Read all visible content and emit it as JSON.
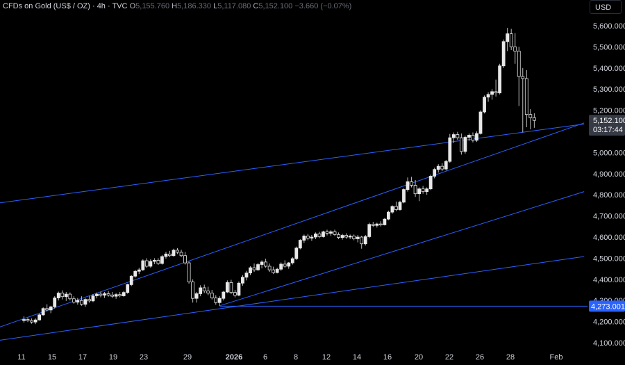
{
  "header": {
    "symbol": "CFDs on Gold (US$ / OZ) · 4h · TVC",
    "open_key": "O",
    "open": "5,155.760",
    "high_key": "H",
    "high": "5,186.330",
    "low_key": "L",
    "low": "5,117.080",
    "close_key": "C",
    "close": "5,152.100",
    "change": "−3.660 (−0.07%)"
  },
  "currency": "USD",
  "colors": {
    "background": "#000000",
    "candle": "#e8e8e8",
    "trendline": "#2962ff",
    "axis_text": "#d1d4dc"
  },
  "chart_data": {
    "type": "candlestick",
    "title": "CFDs on Gold (US$ / OZ) · 4h · TVC",
    "y_ticks": [
      "5,600.000",
      "5,500.000",
      "5,400.000",
      "5,300.000",
      "5,200.000",
      "5,000.000",
      "4,900.000",
      "4,800.000",
      "4,700.000",
      "4,600.000",
      "4,500.000",
      "4,400.000",
      "4,300.000",
      "4,200.000",
      "4,100.000"
    ],
    "y_tick_values": [
      5600,
      5500,
      5400,
      5300,
      5200,
      5000,
      4900,
      4800,
      4700,
      4600,
      4500,
      4400,
      4300,
      4200,
      4100
    ],
    "ylim": [
      4070,
      5655
    ],
    "x_ticks": [
      "11",
      "15",
      "17",
      "19",
      "23",
      "29",
      "2026",
      "6",
      "8",
      "12",
      "14",
      "16",
      "20",
      "22",
      "26",
      "28",
      "Feb"
    ],
    "price_label": "5,152.100",
    "price_value": 5152.1,
    "countdown": "03:17:44",
    "level_label": "4,273.001",
    "level_value": 4273.001,
    "series": [
      {
        "t": 0.5,
        "o": 4205,
        "h": 4225,
        "l": 4195,
        "c": 4210
      },
      {
        "t": 1.0,
        "o": 4210,
        "h": 4218,
        "l": 4198,
        "c": 4205
      },
      {
        "t": 1.5,
        "o": 4205,
        "h": 4215,
        "l": 4190,
        "c": 4198
      },
      {
        "t": 2.0,
        "o": 4198,
        "h": 4215,
        "l": 4188,
        "c": 4208
      },
      {
        "t": 2.5,
        "o": 4208,
        "h": 4238,
        "l": 4205,
        "c": 4232
      },
      {
        "t": 3.0,
        "o": 4232,
        "h": 4268,
        "l": 4228,
        "c": 4262
      },
      {
        "t": 3.5,
        "o": 4262,
        "h": 4282,
        "l": 4248,
        "c": 4255
      },
      {
        "t": 4.0,
        "o": 4255,
        "h": 4275,
        "l": 4240,
        "c": 4270
      },
      {
        "t": 4.5,
        "o": 4270,
        "h": 4320,
        "l": 4262,
        "c": 4312
      },
      {
        "t": 5.0,
        "o": 4312,
        "h": 4342,
        "l": 4300,
        "c": 4335
      },
      {
        "t": 5.5,
        "o": 4335,
        "h": 4348,
        "l": 4305,
        "c": 4318
      },
      {
        "t": 6.0,
        "o": 4318,
        "h": 4340,
        "l": 4298,
        "c": 4330
      },
      {
        "t": 6.5,
        "o": 4330,
        "h": 4338,
        "l": 4300,
        "c": 4308
      },
      {
        "t": 7.0,
        "o": 4308,
        "h": 4320,
        "l": 4285,
        "c": 4292
      },
      {
        "t": 7.5,
        "o": 4292,
        "h": 4312,
        "l": 4280,
        "c": 4300
      },
      {
        "t": 8.0,
        "o": 4300,
        "h": 4320,
        "l": 4275,
        "c": 4282
      },
      {
        "t": 8.5,
        "o": 4282,
        "h": 4310,
        "l": 4270,
        "c": 4305
      },
      {
        "t": 9.0,
        "o": 4305,
        "h": 4322,
        "l": 4290,
        "c": 4298
      },
      {
        "t": 9.5,
        "o": 4298,
        "h": 4330,
        "l": 4292,
        "c": 4322
      },
      {
        "t": 10.0,
        "o": 4322,
        "h": 4338,
        "l": 4310,
        "c": 4330
      },
      {
        "t": 10.5,
        "o": 4330,
        "h": 4342,
        "l": 4315,
        "c": 4325
      },
      {
        "t": 11.0,
        "o": 4325,
        "h": 4340,
        "l": 4312,
        "c": 4332
      },
      {
        "t": 11.5,
        "o": 4332,
        "h": 4345,
        "l": 4318,
        "c": 4326
      },
      {
        "t": 12.0,
        "o": 4326,
        "h": 4340,
        "l": 4312,
        "c": 4320
      },
      {
        "t": 12.5,
        "o": 4320,
        "h": 4335,
        "l": 4308,
        "c": 4328
      },
      {
        "t": 13.0,
        "o": 4328,
        "h": 4340,
        "l": 4315,
        "c": 4322
      },
      {
        "t": 13.5,
        "o": 4322,
        "h": 4345,
        "l": 4318,
        "c": 4338
      },
      {
        "t": 14.0,
        "o": 4338,
        "h": 4380,
        "l": 4332,
        "c": 4375
      },
      {
        "t": 14.5,
        "o": 4375,
        "h": 4420,
        "l": 4368,
        "c": 4415
      },
      {
        "t": 15.0,
        "o": 4415,
        "h": 4445,
        "l": 4408,
        "c": 4438
      },
      {
        "t": 15.5,
        "o": 4438,
        "h": 4455,
        "l": 4425,
        "c": 4445
      },
      {
        "t": 16.0,
        "o": 4445,
        "h": 4495,
        "l": 4440,
        "c": 4488
      },
      {
        "t": 16.5,
        "o": 4488,
        "h": 4500,
        "l": 4455,
        "c": 4462
      },
      {
        "t": 17.0,
        "o": 4462,
        "h": 4495,
        "l": 4455,
        "c": 4485
      },
      {
        "t": 17.5,
        "o": 4485,
        "h": 4500,
        "l": 4472,
        "c": 4490
      },
      {
        "t": 18.0,
        "o": 4490,
        "h": 4500,
        "l": 4468,
        "c": 4475
      },
      {
        "t": 18.5,
        "o": 4475,
        "h": 4515,
        "l": 4470,
        "c": 4508
      },
      {
        "t": 19.0,
        "o": 4508,
        "h": 4530,
        "l": 4498,
        "c": 4520
      },
      {
        "t": 19.5,
        "o": 4520,
        "h": 4535,
        "l": 4505,
        "c": 4512
      },
      {
        "t": 20.0,
        "o": 4512,
        "h": 4545,
        "l": 4508,
        "c": 4538
      },
      {
        "t": 20.5,
        "o": 4538,
        "h": 4548,
        "l": 4520,
        "c": 4528
      },
      {
        "t": 21.0,
        "o": 4528,
        "h": 4540,
        "l": 4505,
        "c": 4512
      },
      {
        "t": 21.5,
        "o": 4512,
        "h": 4530,
        "l": 4470,
        "c": 4478
      },
      {
        "t": 22.0,
        "o": 4478,
        "h": 4485,
        "l": 4380,
        "c": 4388
      },
      {
        "t": 22.5,
        "o": 4388,
        "h": 4400,
        "l": 4290,
        "c": 4310
      },
      {
        "t": 23.0,
        "o": 4310,
        "h": 4340,
        "l": 4290,
        "c": 4332
      },
      {
        "t": 23.5,
        "o": 4332,
        "h": 4372,
        "l": 4320,
        "c": 4360
      },
      {
        "t": 24.0,
        "o": 4360,
        "h": 4375,
        "l": 4335,
        "c": 4345
      },
      {
        "t": 24.5,
        "o": 4345,
        "h": 4365,
        "l": 4325,
        "c": 4335
      },
      {
        "t": 25.0,
        "o": 4335,
        "h": 4350,
        "l": 4305,
        "c": 4312
      },
      {
        "t": 25.5,
        "o": 4312,
        "h": 4325,
        "l": 4280,
        "c": 4290
      },
      {
        "t": 26.0,
        "o": 4290,
        "h": 4320,
        "l": 4274,
        "c": 4310
      },
      {
        "t": 26.5,
        "o": 4310,
        "h": 4345,
        "l": 4300,
        "c": 4340
      },
      {
        "t": 27.0,
        "o": 4340,
        "h": 4395,
        "l": 4335,
        "c": 4385
      },
      {
        "t": 27.5,
        "o": 4385,
        "h": 4398,
        "l": 4330,
        "c": 4338
      },
      {
        "t": 28.0,
        "o": 4338,
        "h": 4350,
        "l": 4315,
        "c": 4325
      },
      {
        "t": 28.5,
        "o": 4325,
        "h": 4390,
        "l": 4320,
        "c": 4382
      },
      {
        "t": 29.0,
        "o": 4382,
        "h": 4420,
        "l": 4370,
        "c": 4410
      },
      {
        "t": 29.5,
        "o": 4410,
        "h": 4440,
        "l": 4395,
        "c": 4430
      },
      {
        "t": 30.0,
        "o": 4430,
        "h": 4462,
        "l": 4420,
        "c": 4455
      },
      {
        "t": 30.5,
        "o": 4455,
        "h": 4475,
        "l": 4435,
        "c": 4445
      },
      {
        "t": 31.0,
        "o": 4445,
        "h": 4478,
        "l": 4440,
        "c": 4470
      },
      {
        "t": 31.5,
        "o": 4470,
        "h": 4490,
        "l": 4452,
        "c": 4482
      },
      {
        "t": 32.0,
        "o": 4482,
        "h": 4498,
        "l": 4455,
        "c": 4462
      },
      {
        "t": 32.5,
        "o": 4462,
        "h": 4475,
        "l": 4435,
        "c": 4445
      },
      {
        "t": 33.0,
        "o": 4445,
        "h": 4460,
        "l": 4425,
        "c": 4432
      },
      {
        "t": 33.5,
        "o": 4432,
        "h": 4455,
        "l": 4428,
        "c": 4448
      },
      {
        "t": 34.0,
        "o": 4448,
        "h": 4480,
        "l": 4440,
        "c": 4472
      },
      {
        "t": 34.5,
        "o": 4472,
        "h": 4490,
        "l": 4455,
        "c": 4462
      },
      {
        "t": 35.0,
        "o": 4462,
        "h": 4482,
        "l": 4450,
        "c": 4478
      },
      {
        "t": 35.5,
        "o": 4478,
        "h": 4505,
        "l": 4470,
        "c": 4498
      },
      {
        "t": 36.0,
        "o": 4498,
        "h": 4555,
        "l": 4492,
        "c": 4548
      },
      {
        "t": 36.5,
        "o": 4548,
        "h": 4590,
        "l": 4542,
        "c": 4585
      },
      {
        "t": 37.0,
        "o": 4585,
        "h": 4612,
        "l": 4572,
        "c": 4605
      },
      {
        "t": 37.5,
        "o": 4605,
        "h": 4615,
        "l": 4585,
        "c": 4595
      },
      {
        "t": 38.0,
        "o": 4595,
        "h": 4610,
        "l": 4582,
        "c": 4600
      },
      {
        "t": 38.5,
        "o": 4600,
        "h": 4622,
        "l": 4590,
        "c": 4615
      },
      {
        "t": 39.0,
        "o": 4615,
        "h": 4625,
        "l": 4595,
        "c": 4602
      },
      {
        "t": 39.5,
        "o": 4602,
        "h": 4630,
        "l": 4598,
        "c": 4625
      },
      {
        "t": 40.0,
        "o": 4625,
        "h": 4635,
        "l": 4608,
        "c": 4618
      },
      {
        "t": 40.5,
        "o": 4618,
        "h": 4632,
        "l": 4605,
        "c": 4625
      },
      {
        "t": 41.0,
        "o": 4625,
        "h": 4635,
        "l": 4605,
        "c": 4612
      },
      {
        "t": 41.5,
        "o": 4612,
        "h": 4622,
        "l": 4590,
        "c": 4598
      },
      {
        "t": 42.0,
        "o": 4598,
        "h": 4615,
        "l": 4588,
        "c": 4608
      },
      {
        "t": 42.5,
        "o": 4608,
        "h": 4618,
        "l": 4592,
        "c": 4600
      },
      {
        "t": 43.0,
        "o": 4600,
        "h": 4612,
        "l": 4590,
        "c": 4605
      },
      {
        "t": 43.5,
        "o": 4605,
        "h": 4612,
        "l": 4585,
        "c": 4592
      },
      {
        "t": 44.0,
        "o": 4592,
        "h": 4610,
        "l": 4575,
        "c": 4600
      },
      {
        "t": 44.5,
        "o": 4600,
        "h": 4606,
        "l": 4545,
        "c": 4568
      },
      {
        "t": 45.0,
        "o": 4568,
        "h": 4610,
        "l": 4560,
        "c": 4602
      },
      {
        "t": 45.5,
        "o": 4602,
        "h": 4668,
        "l": 4595,
        "c": 4660
      },
      {
        "t": 46.0,
        "o": 4660,
        "h": 4672,
        "l": 4648,
        "c": 4655
      },
      {
        "t": 46.5,
        "o": 4655,
        "h": 4668,
        "l": 4645,
        "c": 4662
      },
      {
        "t": 47.0,
        "o": 4662,
        "h": 4675,
        "l": 4650,
        "c": 4658
      },
      {
        "t": 47.5,
        "o": 4658,
        "h": 4690,
        "l": 4655,
        "c": 4685
      },
      {
        "t": 48.0,
        "o": 4685,
        "h": 4725,
        "l": 4680,
        "c": 4718
      },
      {
        "t": 48.5,
        "o": 4718,
        "h": 4750,
        "l": 4710,
        "c": 4745
      },
      {
        "t": 49.0,
        "o": 4745,
        "h": 4768,
        "l": 4722,
        "c": 4730
      },
      {
        "t": 49.5,
        "o": 4730,
        "h": 4772,
        "l": 4725,
        "c": 4765
      },
      {
        "t": 50.0,
        "o": 4765,
        "h": 4830,
        "l": 4760,
        "c": 4825
      },
      {
        "t": 50.5,
        "o": 4825,
        "h": 4882,
        "l": 4815,
        "c": 4862
      },
      {
        "t": 51.0,
        "o": 4862,
        "h": 4885,
        "l": 4835,
        "c": 4845
      },
      {
        "t": 51.5,
        "o": 4845,
        "h": 4870,
        "l": 4790,
        "c": 4805
      },
      {
        "t": 52.0,
        "o": 4805,
        "h": 4835,
        "l": 4770,
        "c": 4828
      },
      {
        "t": 52.5,
        "o": 4828,
        "h": 4842,
        "l": 4805,
        "c": 4815
      },
      {
        "t": 53.0,
        "o": 4815,
        "h": 4835,
        "l": 4800,
        "c": 4828
      },
      {
        "t": 53.5,
        "o": 4828,
        "h": 4895,
        "l": 4822,
        "c": 4888
      },
      {
        "t": 54.0,
        "o": 4888,
        "h": 4928,
        "l": 4878,
        "c": 4920
      },
      {
        "t": 54.5,
        "o": 4920,
        "h": 4945,
        "l": 4905,
        "c": 4935
      },
      {
        "t": 55.0,
        "o": 4935,
        "h": 4950,
        "l": 4912,
        "c": 4922
      },
      {
        "t": 55.5,
        "o": 4922,
        "h": 4965,
        "l": 4915,
        "c": 4958
      },
      {
        "t": 56.0,
        "o": 4958,
        "h": 5088,
        "l": 4952,
        "c": 5070
      },
      {
        "t": 56.5,
        "o": 5070,
        "h": 5095,
        "l": 5045,
        "c": 5085
      },
      {
        "t": 57.0,
        "o": 5085,
        "h": 5098,
        "l": 5060,
        "c": 5070
      },
      {
        "t": 57.5,
        "o": 5070,
        "h": 5090,
        "l": 4990,
        "c": 5005
      },
      {
        "t": 58.0,
        "o": 5005,
        "h": 5080,
        "l": 4995,
        "c": 5072
      },
      {
        "t": 58.5,
        "o": 5072,
        "h": 5090,
        "l": 5055,
        "c": 5082
      },
      {
        "t": 59.0,
        "o": 5082,
        "h": 5095,
        "l": 5048,
        "c": 5058
      },
      {
        "t": 59.5,
        "o": 5058,
        "h": 5100,
        "l": 5050,
        "c": 5090
      },
      {
        "t": 60.0,
        "o": 5090,
        "h": 5200,
        "l": 5085,
        "c": 5192
      },
      {
        "t": 60.5,
        "o": 5192,
        "h": 5270,
        "l": 5185,
        "c": 5262
      },
      {
        "t": 61.0,
        "o": 5262,
        "h": 5285,
        "l": 5240,
        "c": 5275
      },
      {
        "t": 61.5,
        "o": 5275,
        "h": 5300,
        "l": 5250,
        "c": 5288
      },
      {
        "t": 62.0,
        "o": 5288,
        "h": 5345,
        "l": 5265,
        "c": 5282
      },
      {
        "t": 62.5,
        "o": 5282,
        "h": 5420,
        "l": 5275,
        "c": 5410
      },
      {
        "t": 63.0,
        "o": 5410,
        "h": 5535,
        "l": 5400,
        "c": 5525
      },
      {
        "t": 63.5,
        "o": 5525,
        "h": 5590,
        "l": 5480,
        "c": 5562
      },
      {
        "t": 64.0,
        "o": 5562,
        "h": 5585,
        "l": 5485,
        "c": 5500
      },
      {
        "t": 64.5,
        "o": 5500,
        "h": 5565,
        "l": 5420,
        "c": 5480
      },
      {
        "t": 65.0,
        "o": 5480,
        "h": 5500,
        "l": 5220,
        "c": 5360
      },
      {
        "t": 65.5,
        "o": 5360,
        "h": 5400,
        "l": 5095,
        "c": 5350
      },
      {
        "t": 66.0,
        "o": 5350,
        "h": 5390,
        "l": 5120,
        "c": 5180
      },
      {
        "t": 66.5,
        "o": 5180,
        "h": 5205,
        "l": 5110,
        "c": 5165
      },
      {
        "t": 67.0,
        "o": 5165,
        "h": 5186,
        "l": 5117,
        "c": 5152
      }
    ],
    "trendlines": [
      {
        "from": {
          "t": -3.0,
          "p": 4170
        },
        "to": {
          "t": 73.5,
          "p": 5140
        }
      },
      {
        "from": {
          "t": -3.0,
          "p": 4110
        },
        "to": {
          "t": 73.5,
          "p": 4508
        }
      },
      {
        "from": {
          "t": 26.0,
          "p": 4275
        },
        "to": {
          "t": 73.5,
          "p": 4815
        }
      },
      {
        "from": {
          "t": -3.0,
          "p": 4760
        },
        "to": {
          "t": 73.5,
          "p": 5135
        }
      }
    ]
  }
}
